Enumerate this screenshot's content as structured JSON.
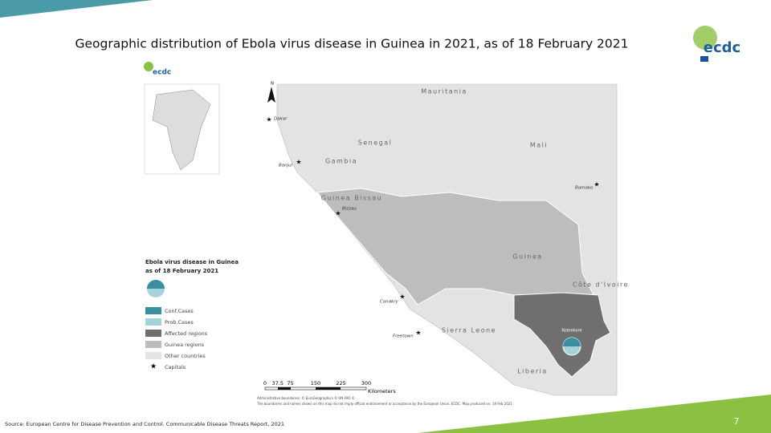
{
  "header": {
    "title": "Geographic distribution of Ebola virus disease in Guinea in 2021, as of 18 February 2021",
    "logo": "ecdc"
  },
  "map": {
    "north": "N",
    "countries": [
      "Mauritania",
      "Senegal",
      "Mali",
      "Gambia",
      "Guinea Bissau",
      "Guinea",
      "Côte d'Ivoire",
      "Sierra Leone",
      "Liberia"
    ],
    "capitals": [
      "Dakar",
      "Banjul",
      "Bamako",
      "Bissau",
      "Conakry",
      "Freetown"
    ],
    "region": "Nzerekore",
    "legend": {
      "title": "Ebola virus disease in Guinea as of 18 February 2021",
      "items": [
        "Conf.Cases",
        "Prob.Cases",
        "Affected regions",
        "Guinea regions",
        "Other countries",
        "Capitals"
      ]
    },
    "scale": {
      "ticks": [
        0,
        37.5,
        75,
        150,
        225,
        300
      ],
      "unit": "Kilometers"
    },
    "notes": [
      "Administrative boundaries: © EuroGeographics © UN-FAO ©",
      "The boundaries and names shown on this map do not imply official endorsement or acceptance by the European Union. ECDC. Map produced on: 19 Feb 2021"
    ]
  },
  "footer": {
    "source": "Source: European Centre for Disease Prevention and Control. Communicable Disease Threats Report, 2021",
    "page": "7"
  }
}
